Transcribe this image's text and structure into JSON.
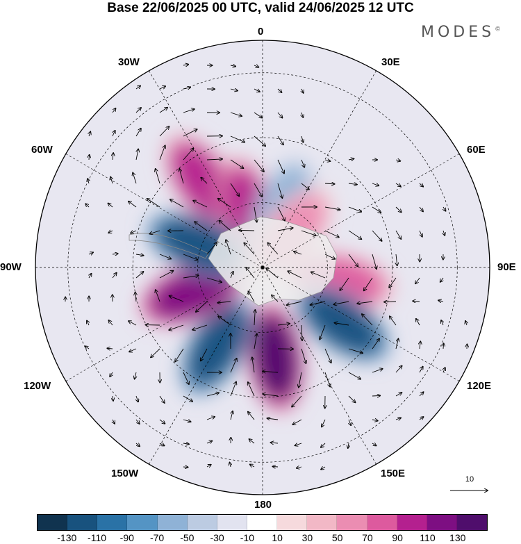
{
  "title": "Base 22/06/2025 00 UTC, valid 24/06/2025 12 UTC",
  "brand": "MODES",
  "brand_mark": "©",
  "longitude_labels": {
    "lon_0": "0",
    "lon_30e": "30E",
    "lon_60e": "60E",
    "lon_90e": "90E",
    "lon_120e": "120E",
    "lon_150e": "150E",
    "lon_180": "180",
    "lon_150w": "150W",
    "lon_120w": "120W",
    "lon_90w": "90W",
    "lon_60w": "60W",
    "lon_30w": "30W"
  },
  "vector_reference": "10",
  "colorbar": {
    "colors": [
      "#10334f",
      "#18527e",
      "#2a72a6",
      "#5494c4",
      "#8fb2d6",
      "#bccbe2",
      "#e2e3f0",
      "#ffffff",
      "#f6dadd",
      "#f2b8c6",
      "#eb8db2",
      "#dd5a9e",
      "#b4208f",
      "#7d0f82",
      "#4f0e6c"
    ],
    "ticks": [
      "-130",
      "-110",
      "-90",
      "-70",
      "-50",
      "-30",
      "-10",
      "10",
      "30",
      "50",
      "70",
      "90",
      "110",
      "130"
    ]
  },
  "anomaly_centers": [
    {
      "lon": 325,
      "lat": -58,
      "value": 95,
      "type": "positive"
    },
    {
      "lon": 345,
      "lat": -72,
      "value": 100,
      "type": "positive"
    },
    {
      "lon": 20,
      "lat": -72,
      "value": -70,
      "type": "negative"
    },
    {
      "lon": 40,
      "lat": -76,
      "value": 50,
      "type": "positive"
    },
    {
      "lon": 100,
      "lat": -66,
      "value": 70,
      "type": "positive"
    },
    {
      "lon": 125,
      "lat": -60,
      "value": -115,
      "type": "negative"
    },
    {
      "lon": 172,
      "lat": -62,
      "value": 130,
      "type": "positive"
    },
    {
      "lon": 210,
      "lat": -62,
      "value": -120,
      "type": "negative"
    },
    {
      "lon": 250,
      "lat": -67,
      "value": 115,
      "type": "positive"
    },
    {
      "lon": 290,
      "lat": -69,
      "value": -125,
      "type": "negative"
    }
  ]
}
